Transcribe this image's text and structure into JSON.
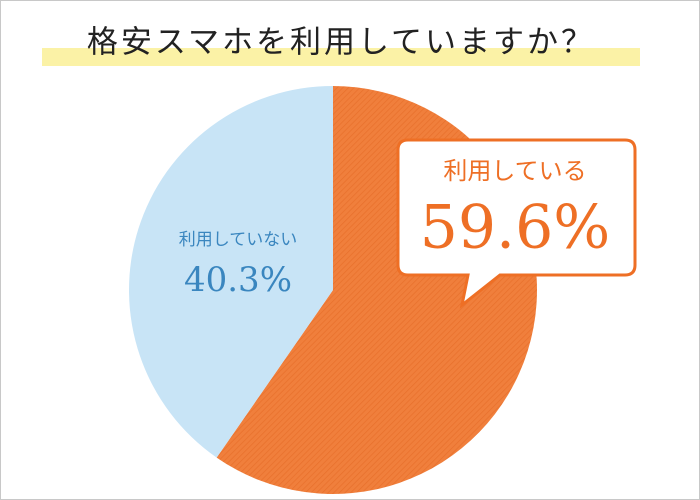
{
  "chart_data": {
    "type": "pie",
    "title": "格安スマホを利用していますか？",
    "categories": [
      "利用している",
      "利用していない"
    ],
    "values": [
      59.6,
      40.3
    ],
    "value_labels": [
      "59.6%",
      "40.3%"
    ],
    "colors": [
      "#f07f3c",
      "#c8e4f6"
    ]
  }
}
